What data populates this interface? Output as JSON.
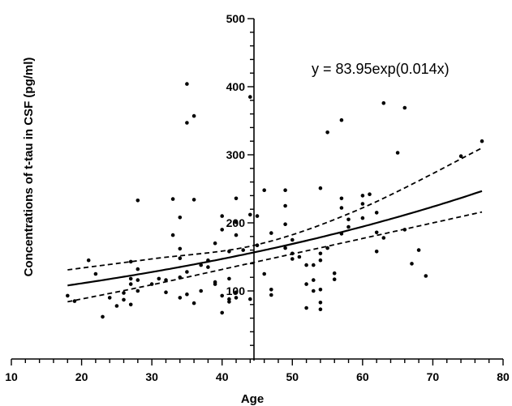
{
  "chart_data": {
    "type": "scatter",
    "xlabel": "Age",
    "ylabel": "Concentrations of t-tau in CSF (pg/ml)",
    "xlim": [
      10,
      80
    ],
    "ylim": [
      0,
      500
    ],
    "xticks": [
      "10",
      "20",
      "30",
      "40",
      "50",
      "60",
      "70",
      "80"
    ],
    "yticks": [
      "100",
      "200",
      "300",
      "400",
      "500"
    ],
    "annotation": "y = 83.95exp(0.014x)",
    "fit": {
      "a": 83.95,
      "b": 0.014,
      "x_range": [
        18,
        77
      ]
    },
    "ci_lower": {
      "x": [
        18,
        30,
        45,
        60,
        77
      ],
      "y": [
        84,
        109,
        143,
        177,
        216
      ]
    },
    "ci_upper": {
      "x": [
        18,
        30,
        45,
        60,
        77
      ],
      "y": [
        131,
        147,
        168,
        222,
        310
      ]
    },
    "points": [
      [
        18,
        93
      ],
      [
        19,
        85
      ],
      [
        21,
        145
      ],
      [
        22,
        125
      ],
      [
        23,
        62
      ],
      [
        24,
        90
      ],
      [
        25,
        78
      ],
      [
        26,
        97
      ],
      [
        26,
        87
      ],
      [
        27,
        143
      ],
      [
        27,
        118
      ],
      [
        27,
        110
      ],
      [
        27,
        80
      ],
      [
        28,
        233
      ],
      [
        28,
        132
      ],
      [
        28,
        116
      ],
      [
        28,
        100
      ],
      [
        30,
        110
      ],
      [
        31,
        118
      ],
      [
        32,
        98
      ],
      [
        32,
        116
      ],
      [
        33,
        235
      ],
      [
        33,
        182
      ],
      [
        34,
        208
      ],
      [
        34,
        162
      ],
      [
        34,
        148
      ],
      [
        34,
        120
      ],
      [
        34,
        90
      ],
      [
        35,
        404
      ],
      [
        35,
        347
      ],
      [
        35,
        128
      ],
      [
        35,
        95
      ],
      [
        36,
        357
      ],
      [
        36,
        234
      ],
      [
        36,
        82
      ],
      [
        37,
        100
      ],
      [
        37,
        138
      ],
      [
        38,
        145
      ],
      [
        38,
        135
      ],
      [
        39,
        110
      ],
      [
        39,
        113
      ],
      [
        39,
        170
      ],
      [
        40,
        210
      ],
      [
        40,
        190
      ],
      [
        40,
        68
      ],
      [
        40,
        93
      ],
      [
        41,
        158
      ],
      [
        41,
        118
      ],
      [
        41,
        88
      ],
      [
        41,
        84
      ],
      [
        42,
        236
      ],
      [
        42,
        201
      ],
      [
        42,
        182
      ],
      [
        42,
        98
      ],
      [
        42,
        90
      ],
      [
        43,
        160
      ],
      [
        44,
        385
      ],
      [
        44,
        212
      ],
      [
        44,
        88
      ],
      [
        45,
        210
      ],
      [
        45,
        167
      ],
      [
        46,
        248
      ],
      [
        46,
        125
      ],
      [
        47,
        185
      ],
      [
        47,
        102
      ],
      [
        47,
        94
      ],
      [
        49,
        248
      ],
      [
        49,
        225
      ],
      [
        49,
        198
      ],
      [
        49,
        163
      ],
      [
        50,
        175
      ],
      [
        50,
        155
      ],
      [
        50,
        147
      ],
      [
        51,
        150
      ],
      [
        52,
        138
      ],
      [
        52,
        110
      ],
      [
        52,
        75
      ],
      [
        53,
        138
      ],
      [
        53,
        116
      ],
      [
        53,
        100
      ],
      [
        54,
        251
      ],
      [
        54,
        155
      ],
      [
        54,
        145
      ],
      [
        54,
        102
      ],
      [
        54,
        83
      ],
      [
        54,
        73
      ],
      [
        55,
        333
      ],
      [
        55,
        163
      ],
      [
        56,
        126
      ],
      [
        56,
        117
      ],
      [
        57,
        351
      ],
      [
        57,
        236
      ],
      [
        57,
        222
      ],
      [
        57,
        184
      ],
      [
        58,
        205
      ],
      [
        58,
        194
      ],
      [
        60,
        240
      ],
      [
        60,
        228
      ],
      [
        60,
        207
      ],
      [
        61,
        242
      ],
      [
        62,
        215
      ],
      [
        62,
        186
      ],
      [
        62,
        158
      ],
      [
        63,
        376
      ],
      [
        63,
        178
      ],
      [
        65,
        303
      ],
      [
        66,
        369
      ],
      [
        66,
        190
      ],
      [
        67,
        140
      ],
      [
        68,
        160
      ],
      [
        69,
        122
      ],
      [
        74,
        298
      ],
      [
        77,
        320
      ]
    ]
  }
}
